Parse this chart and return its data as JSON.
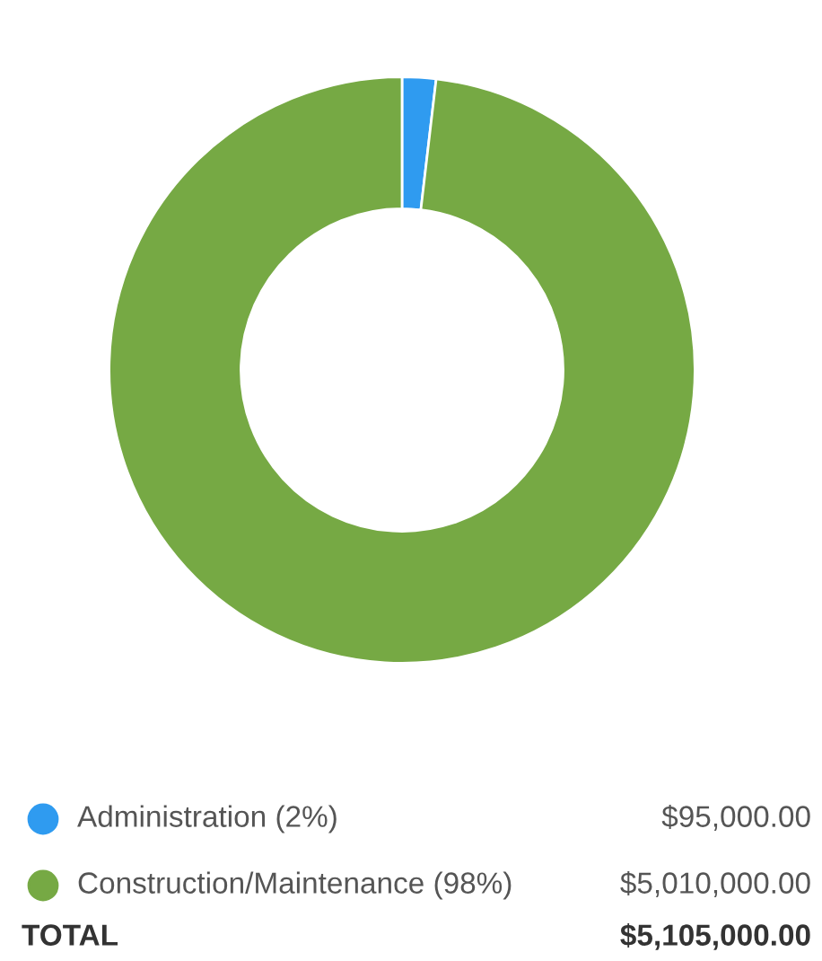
{
  "chart_data": {
    "type": "donut",
    "categories": [
      "Administration (2%)",
      "Construction/Maintenance (98%)"
    ],
    "values": [
      95000,
      5010000
    ],
    "colors": [
      "#2f9bf0",
      "#76a944"
    ],
    "value_labels": [
      "$95,000.00",
      "$5,010,000.00"
    ],
    "legend": "bottom",
    "annotations": [
      "TOTAL",
      "$5,105,000.00"
    ]
  }
}
